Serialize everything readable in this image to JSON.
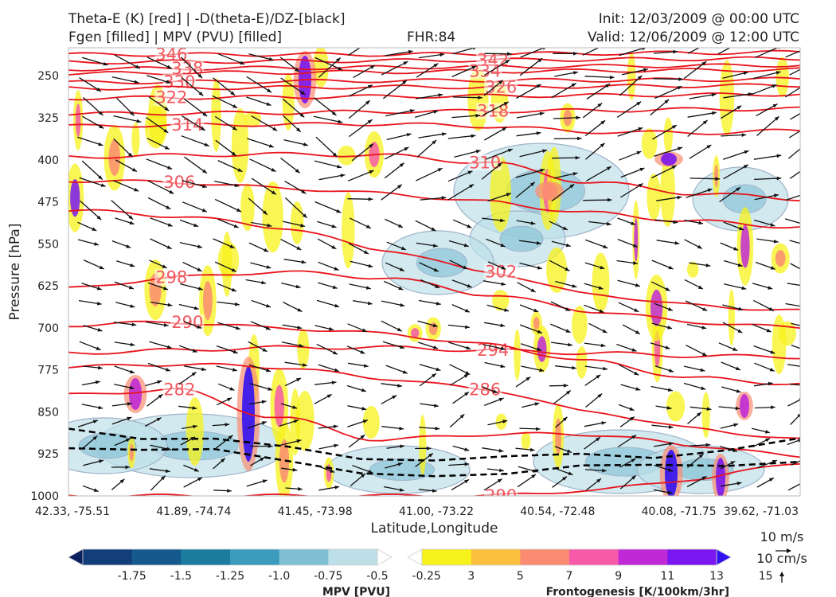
{
  "header": {
    "title_left_1": "Theta-E (K) [red] | -D(theta-E)/DZ-[black]",
    "title_left_2": "Fgen [filled] | MPV (PVU) [filled]",
    "title_mid": "FHR:84",
    "title_right_1": "Init: 12/03/2009 @ 00:00 UTC",
    "title_right_2": "Valid: 12/06/2009 @ 12:00 UTC"
  },
  "chart_data": {
    "type": "cross-section",
    "xlabel": "Latitude,Longitude",
    "ylabel": "Pressure [hPa]",
    "x_ticks": [
      "42.33, -75.51",
      "41.89, -74.74",
      "41.45, -73.98",
      "41.00, -73.22",
      "40.54, -72.48",
      "40.08, -71.75",
      "39.62, -71.03"
    ],
    "y_ticks": [
      "250",
      "325",
      "400",
      "475",
      "550",
      "625",
      "700",
      "775",
      "850",
      "925",
      "1000"
    ],
    "ylim": [
      1000,
      200
    ],
    "theta_e_isentropes": [
      {
        "label": "346",
        "p": [
          212,
          212,
          212,
          212,
          211,
          210,
          209,
          208
        ]
      },
      {
        "label": "342",
        "p": [
          226,
          225,
          224,
          223,
          222,
          221,
          220,
          219
        ]
      },
      {
        "label": "338",
        "p": [
          238,
          237,
          236,
          235,
          234,
          233,
          232,
          231
        ]
      },
      {
        "label": "334",
        "p": [
          246,
          245,
          244,
          243,
          242,
          241,
          240,
          239
        ]
      },
      {
        "label": "330",
        "p": [
          262,
          261,
          260,
          259,
          258,
          258,
          257,
          256
        ]
      },
      {
        "label": "326",
        "p": [
          272,
          272,
          271,
          270,
          270,
          269,
          268,
          267
        ]
      },
      {
        "label": "322",
        "p": [
          290,
          289,
          288,
          287,
          286,
          285,
          284,
          283
        ]
      },
      {
        "label": "318",
        "p": [
          318,
          317,
          316,
          314,
          313,
          312,
          310,
          309
        ]
      },
      {
        "label": "314",
        "p": [
          340,
          338,
          337,
          336,
          340,
          350,
          352,
          348
        ]
      },
      {
        "label": "310",
        "p": [
          395,
          392,
          390,
          392,
          405,
          440,
          460,
          470
        ]
      },
      {
        "label": "306",
        "p": [
          437,
          440,
          450,
          460,
          475,
          495,
          510,
          520
        ]
      },
      {
        "label": "302",
        "p": [
          490,
          500,
          520,
          560,
          600,
          640,
          660,
          670
        ]
      },
      {
        "label": "298",
        "p": [
          630,
          610,
          600,
          610,
          640,
          670,
          690,
          700
        ]
      },
      {
        "label": "294",
        "p": [
          745,
          740,
          735,
          735,
          740,
          745,
          750,
          752
        ]
      },
      {
        "label": "290",
        "p": [
          695,
          690,
          700,
          710,
          730,
          760,
          790,
          800
        ]
      },
      {
        "label": "286",
        "p": [
          770,
          765,
          770,
          790,
          810,
          850,
          880,
          900
        ]
      },
      {
        "label": "282",
        "p": [
          820,
          810,
          860,
          900,
          890,
          890,
          910,
          930
        ]
      },
      {
        "label": "290",
        "p": [
          1000,
          1000,
          1000,
          1000,
          1000,
          990,
          970,
          940
        ]
      }
    ],
    "stability_contour_black_dashed": {
      "p": [
        880,
        890,
        900,
        920,
        930,
        930,
        935,
        930,
        925,
        915,
        905
      ]
    },
    "colorbars": [
      {
        "label": "MPV [PVU]",
        "ticks": [
          "-1.75",
          "-1.5",
          "-1.25",
          "-1.0",
          "-0.75",
          "-0.5",
          "-0.25"
        ],
        "colors": [
          "#0c1f5e",
          "#123e7a",
          "#155a8c",
          "#1e7ba0",
          "#3d9bbd",
          "#7fbfd4",
          "#bddfe8",
          "#ffffff"
        ]
      },
      {
        "label": "Frontogenesis [K/100km/3hr]",
        "ticks": [
          "3",
          "5",
          "7",
          "9",
          "11",
          "13",
          "15"
        ],
        "colors": [
          "#ffffff",
          "#f7f21a",
          "#fcc03c",
          "#fb8c72",
          "#f65aa8",
          "#c02ad6",
          "#7a16f0",
          "#3111f2"
        ]
      }
    ],
    "wind_reference": {
      "horizontal": "10 m/s",
      "vertical": "10 cm/s"
    }
  }
}
